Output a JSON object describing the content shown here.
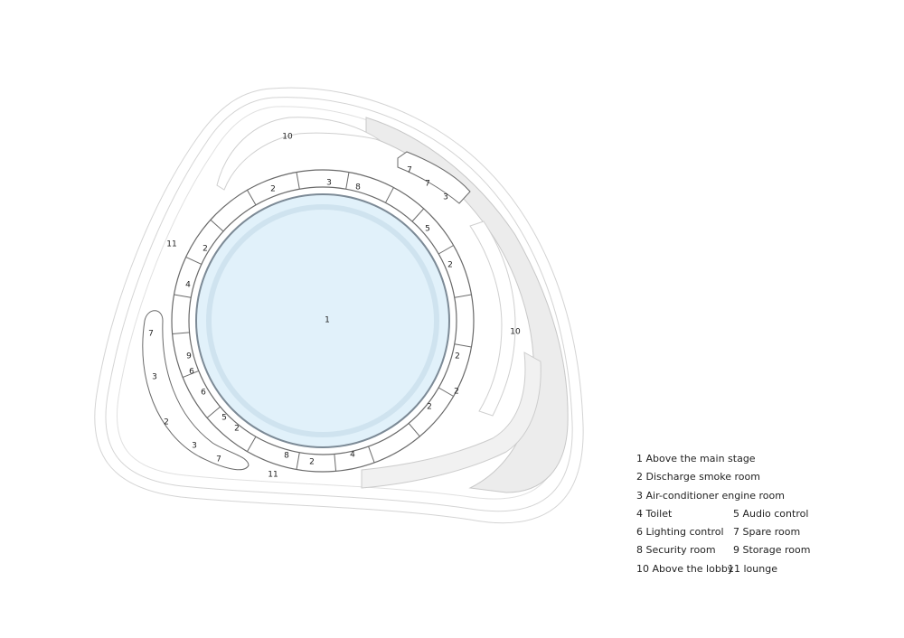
{
  "plan": {
    "room_labels": [
      "10",
      "2",
      "3",
      "8",
      "7",
      "7",
      "3",
      "11",
      "2",
      "5",
      "2",
      "4",
      "1",
      "7",
      "10",
      "9",
      "2",
      "3",
      "6",
      "6",
      "2",
      "5",
      "2",
      "2",
      "2",
      "3",
      "8",
      "2",
      "4",
      "7",
      "11"
    ],
    "colors": {
      "stage_fill": "#e1f1fa",
      "stage_stroke": "#7c8a96",
      "wall": "#6a6a6a",
      "outline": "#cfcfcf"
    }
  },
  "legend": {
    "items": [
      "1 Above the main stage",
      "2 Discharge smoke room",
      "3 Air-conditioner engine room",
      "4 Toilet",
      "5 Audio control",
      "6 Lighting control",
      "7 Spare room",
      "8 Security room",
      "9 Storage room",
      "10 Above the lobby",
      "11 lounge"
    ]
  }
}
